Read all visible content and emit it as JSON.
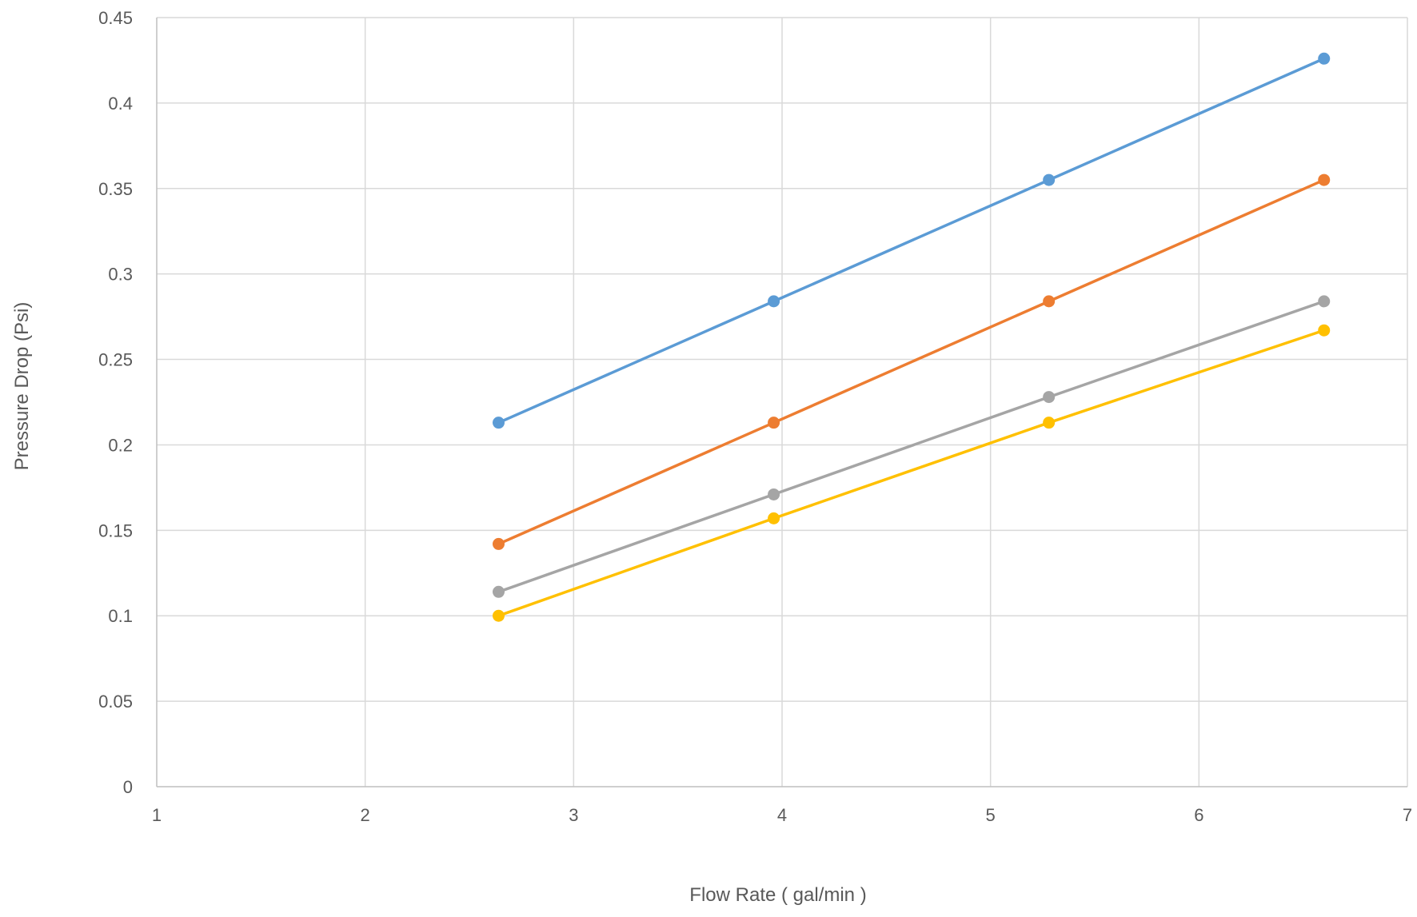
{
  "chart_data": {
    "type": "scatter",
    "title": "",
    "xlabel": "Flow Rate ( gal/min )",
    "ylabel": "Pressure Drop (Psi)",
    "xlim": [
      1,
      7
    ],
    "ylim": [
      0,
      0.45
    ],
    "x_ticks": [
      "1",
      "2",
      "3",
      "4",
      "5",
      "6",
      "7"
    ],
    "y_ticks": [
      "0",
      "0.05",
      "0.1",
      "0.15",
      "0.2",
      "0.25",
      "0.3",
      "0.35",
      "0.4",
      "0.45"
    ],
    "grid": true,
    "legend": "none",
    "x": [
      2.64,
      3.96,
      5.28,
      6.6
    ],
    "series": [
      {
        "color": "#5B9BD5",
        "values": [
          0.213,
          0.284,
          0.355,
          0.426
        ]
      },
      {
        "color": "#ED7D31",
        "values": [
          0.142,
          0.213,
          0.284,
          0.355
        ]
      },
      {
        "color": "#A5A5A5",
        "values": [
          0.114,
          0.171,
          0.228,
          0.284
        ]
      },
      {
        "color": "#FFC000",
        "values": [
          0.1,
          0.157,
          0.213,
          0.267
        ]
      }
    ]
  }
}
